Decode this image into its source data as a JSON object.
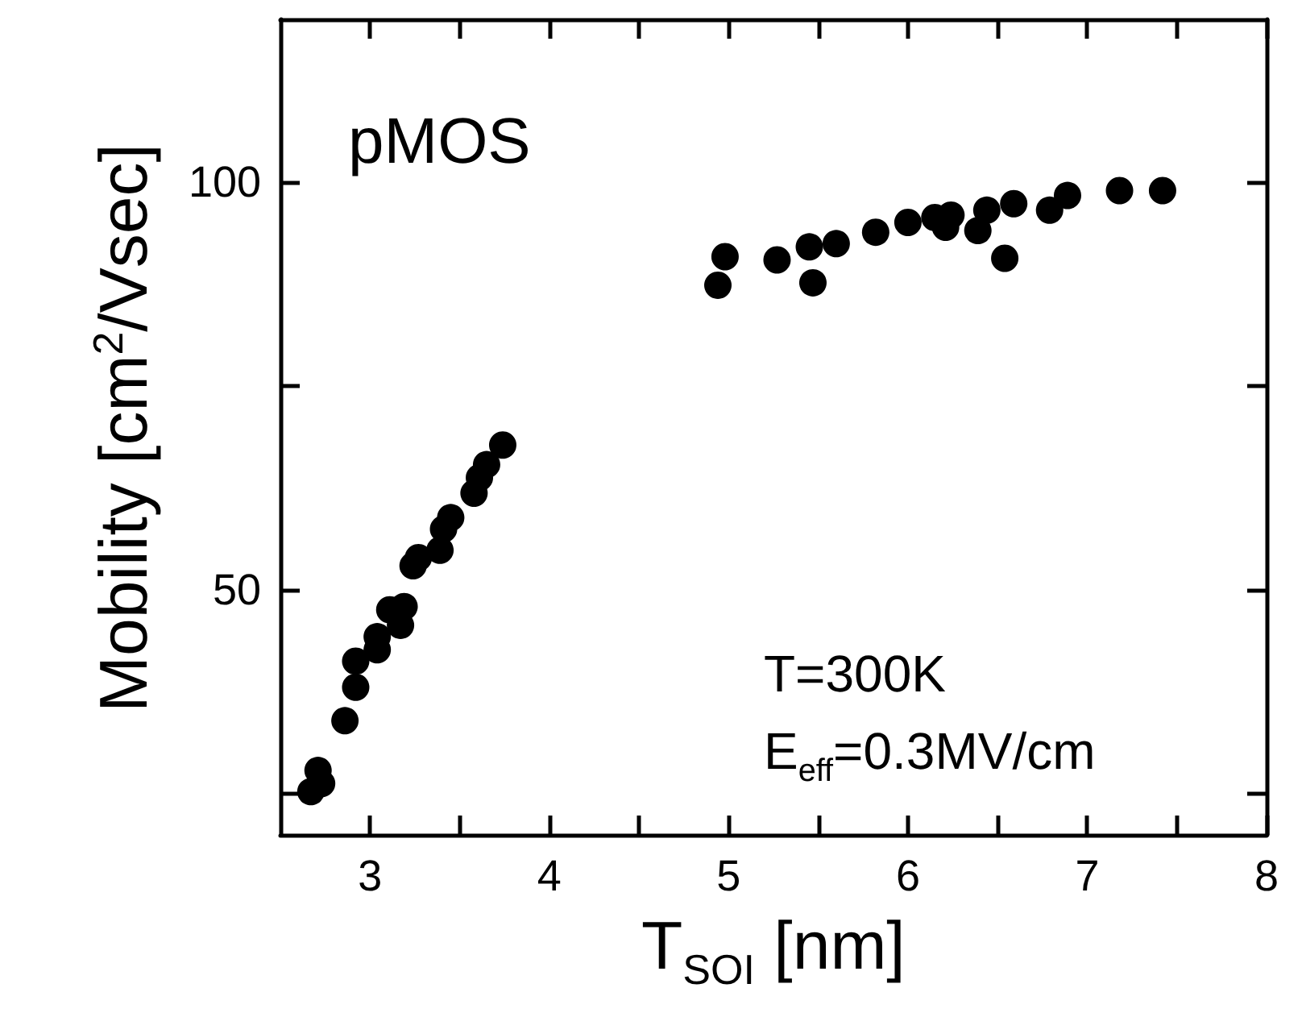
{
  "chart_data": {
    "type": "scatter",
    "xlabel": "T$_{SOI}$ [nm]",
    "ylabel": "Mobility [cm$^{2}$/Vsec]",
    "annotations": [
      "pMOS",
      "T=300K",
      "E$_{eff}$=0.3MV/cm"
    ],
    "xlim": [
      2.5,
      8
    ],
    "xticks": [
      3,
      {
        "value": 3.5,
        "label": null
      },
      4,
      {
        "value": 4.5,
        "label": null
      },
      5,
      {
        "value": 5.5,
        "label": null
      },
      6,
      {
        "value": 6.5,
        "label": null
      },
      7,
      {
        "value": 7.5,
        "label": null
      },
      8
    ],
    "ylim": [
      20,
      120
    ],
    "yticks": [
      {
        "value": 25,
        "label": null
      },
      50,
      {
        "value": 75,
        "label": null
      },
      100
    ],
    "grid": false,
    "marker": "circle",
    "series": [
      {
        "color": "#000000",
        "x": [
          2.67,
          2.71,
          2.73,
          2.86,
          2.92,
          2.92,
          3.04,
          3.04,
          3.11,
          3.19,
          3.17,
          3.24,
          3.27,
          3.39,
          3.41,
          3.45,
          3.58,
          3.61,
          3.65,
          3.74,
          4.94,
          4.98,
          5.27,
          5.47,
          5.45,
          5.6,
          5.82,
          6.0,
          6.15,
          6.21,
          6.24,
          6.39,
          6.44,
          6.54,
          6.59,
          6.79,
          6.89,
          7.18,
          7.42
        ],
        "values": [
          25.3,
          27.9,
          26.3,
          34.0,
          38.1,
          41.3,
          42.7,
          44.3,
          47.6,
          48.0,
          45.7,
          53.0,
          54.0,
          54.9,
          57.5,
          58.9,
          61.9,
          63.8,
          65.4,
          67.8,
          87.4,
          90.9,
          90.5,
          87.7,
          92.1,
          92.5,
          93.9,
          95.1,
          95.7,
          94.5,
          96.0,
          94.1,
          96.6,
          90.7,
          97.4,
          96.6,
          98.4,
          99.0,
          99.0
        ]
      }
    ]
  }
}
